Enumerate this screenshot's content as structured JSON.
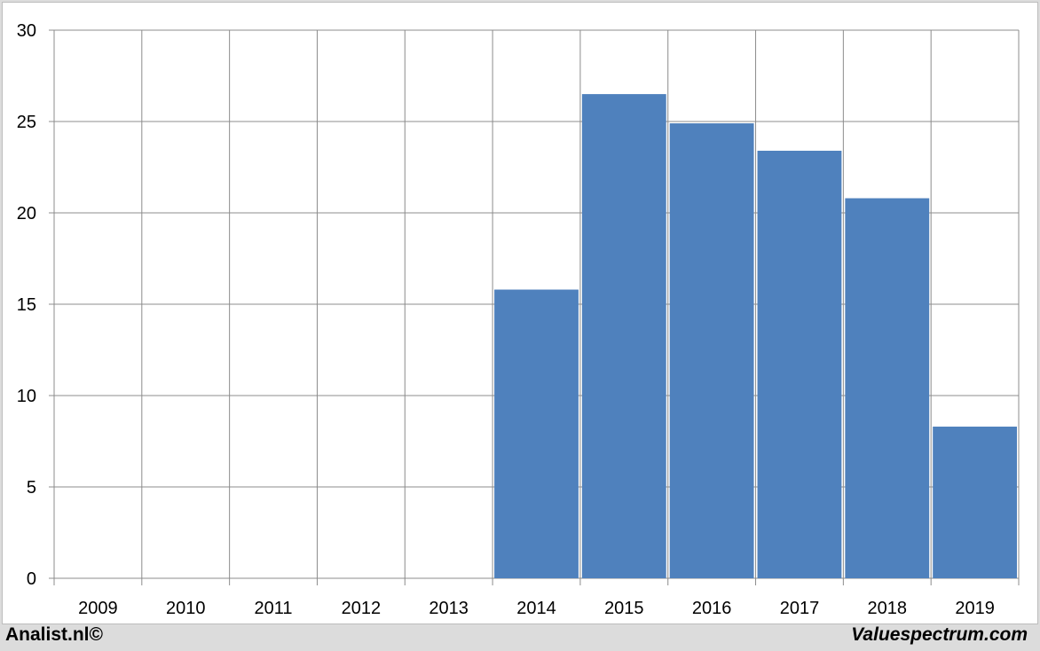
{
  "chart_data": {
    "type": "bar",
    "categories": [
      "2009",
      "2010",
      "2011",
      "2012",
      "2013",
      "2014",
      "2015",
      "2016",
      "2017",
      "2018",
      "2019"
    ],
    "values": [
      0,
      0,
      0,
      0,
      0,
      15.8,
      26.5,
      24.9,
      23.4,
      20.8,
      8.3
    ],
    "ylim": [
      0,
      30
    ],
    "yticks": [
      0,
      5,
      10,
      15,
      20,
      25,
      30
    ],
    "grid": true,
    "colors": {
      "bar": "#4f81bd",
      "grid": "#8c8c8c"
    }
  },
  "footer": {
    "left": "Analist.nl©",
    "right": "Valuespectrum.com"
  }
}
